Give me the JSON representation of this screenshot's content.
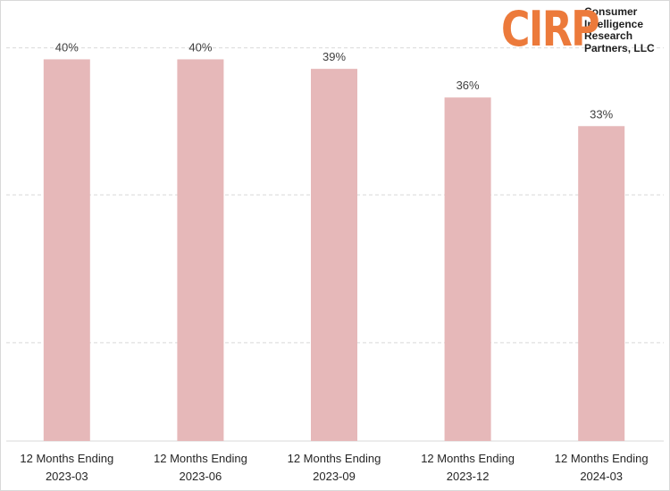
{
  "chart_data": {
    "type": "bar",
    "categories": [
      [
        "12 Months Ending",
        "2023-03"
      ],
      [
        "12 Months Ending",
        "2023-06"
      ],
      [
        "12 Months Ending",
        "2023-09"
      ],
      [
        "12 Months Ending",
        "2023-12"
      ],
      [
        "12 Months Ending",
        "2024-03"
      ]
    ],
    "values": [
      40,
      40,
      39,
      36,
      33
    ],
    "value_labels": [
      "40%",
      "40%",
      "39%",
      "36%",
      "33%"
    ],
    "ylim": [
      0,
      45
    ],
    "grid": {
      "y": true,
      "style": "dashed",
      "values": [
        10.3,
        25.8,
        41.2
      ]
    },
    "legend": "none",
    "bar_color": "#e6b8b9",
    "grid_color": "#d9d9d9"
  },
  "logo": {
    "mark": "CIRP",
    "lines": [
      "Consumer",
      "Intelligence",
      "Research",
      "Partners, LLC"
    ],
    "mark_color": "#ec7a3b"
  }
}
